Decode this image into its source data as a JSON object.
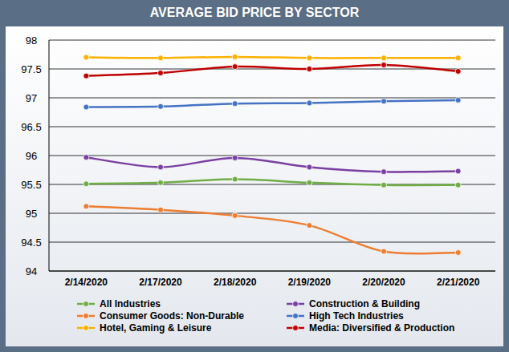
{
  "chart_data": {
    "type": "line",
    "title": "AVERAGE BID PRICE BY SECTOR",
    "categories": [
      "2/14/2020",
      "2/17/2020",
      "2/18/2020",
      "2/19/2020",
      "2/20/2020",
      "2/21/2020"
    ],
    "series": [
      {
        "name": "All Industries",
        "color": "#70ad47",
        "values": [
          95.51,
          95.53,
          95.59,
          95.53,
          95.49,
          95.49
        ]
      },
      {
        "name": "Construction & Building",
        "color": "#7a3fa3",
        "values": [
          95.97,
          95.8,
          95.96,
          95.8,
          95.72,
          95.73
        ]
      },
      {
        "name": "Consumer Goods: Non-Durable",
        "color": "#ed7d31",
        "values": [
          95.12,
          95.06,
          94.96,
          94.79,
          94.34,
          94.32
        ]
      },
      {
        "name": "High Tech Industries",
        "color": "#4472c4",
        "values": [
          96.84,
          96.85,
          96.9,
          96.91,
          96.94,
          96.96
        ]
      },
      {
        "name": "Hotel, Gaming & Leisure",
        "color": "#ffb000",
        "values": [
          97.7,
          97.69,
          97.71,
          97.69,
          97.69,
          97.69
        ]
      },
      {
        "name": "Media: Diversified & Production",
        "color": "#c00000",
        "values": [
          97.38,
          97.43,
          97.54,
          97.5,
          97.57,
          97.46
        ]
      }
    ],
    "ylim": [
      94,
      98
    ],
    "yticks": [
      94,
      94.5,
      95,
      95.5,
      96,
      96.5,
      97,
      97.5,
      98
    ],
    "grid": true,
    "legend": "bottom",
    "marker": "circle",
    "line_style": "smooth"
  }
}
